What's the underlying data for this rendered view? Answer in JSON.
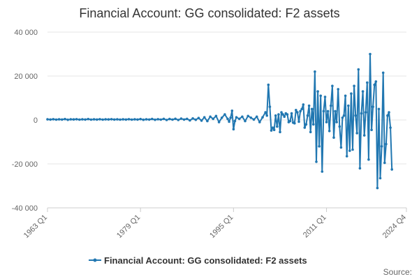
{
  "chart_data": {
    "type": "line",
    "title": "Financial Account: GG consolidated: F2 assets",
    "xlabel": "",
    "ylabel": "",
    "ylim": [
      -40000,
      40000
    ],
    "y_ticks": [
      40000,
      20000,
      0,
      -20000,
      -40000
    ],
    "y_tick_labels": [
      "40 000",
      "20 000",
      "0",
      "-20 000",
      "-40 000"
    ],
    "x_tick_labels": [
      "1963 Q1",
      "1979 Q1",
      "1995 Q1",
      "2011 Q1",
      "2024 Q4"
    ],
    "x_ticks_decimal": [
      1963.0,
      1979.0,
      1995.0,
      2011.0,
      2024.75
    ],
    "grid": true,
    "legend_position": "bottom",
    "series": [
      {
        "name": "Financial Account: GG consolidated: F2 assets",
        "color": "#2177b1",
        "points": [
          [
            1963.0,
            300
          ],
          [
            1963.5,
            200
          ],
          [
            1964.0,
            350
          ],
          [
            1964.5,
            150
          ],
          [
            1965.0,
            300
          ],
          [
            1965.5,
            200
          ],
          [
            1966.0,
            400
          ],
          [
            1966.5,
            100
          ],
          [
            1967.0,
            300
          ],
          [
            1967.5,
            250
          ],
          [
            1968.0,
            350
          ],
          [
            1968.5,
            150
          ],
          [
            1969.0,
            300
          ],
          [
            1969.5,
            200
          ],
          [
            1970.0,
            400
          ],
          [
            1970.5,
            150
          ],
          [
            1971.0,
            300
          ],
          [
            1971.5,
            200
          ],
          [
            1972.0,
            350
          ],
          [
            1972.5,
            150
          ],
          [
            1973.0,
            300
          ],
          [
            1973.5,
            250
          ],
          [
            1974.0,
            350
          ],
          [
            1974.5,
            200
          ],
          [
            1975.0,
            300
          ],
          [
            1975.5,
            150
          ],
          [
            1976.0,
            300
          ],
          [
            1976.5,
            200
          ],
          [
            1977.0,
            350
          ],
          [
            1977.5,
            150
          ],
          [
            1978.0,
            300
          ],
          [
            1978.5,
            200
          ],
          [
            1979.0,
            400
          ],
          [
            1979.5,
            100
          ],
          [
            1980.0,
            300
          ],
          [
            1980.5,
            200
          ],
          [
            1981.0,
            450
          ],
          [
            1981.5,
            100
          ],
          [
            1982.0,
            350
          ],
          [
            1982.5,
            150
          ],
          [
            1983.0,
            500
          ],
          [
            1983.5,
            0
          ],
          [
            1984.0,
            450
          ],
          [
            1984.5,
            150
          ],
          [
            1985.0,
            550
          ],
          [
            1985.5,
            0
          ],
          [
            1986.0,
            600
          ],
          [
            1986.5,
            200
          ],
          [
            1987.0,
            500
          ],
          [
            1987.5,
            -200
          ],
          [
            1988.0,
            700
          ],
          [
            1988.5,
            100
          ],
          [
            1989.0,
            900
          ],
          [
            1989.5,
            -300
          ],
          [
            1990.0,
            1200
          ],
          [
            1990.5,
            -500
          ],
          [
            1991.0,
            1500
          ],
          [
            1991.5,
            500
          ],
          [
            1992.0,
            1800
          ],
          [
            1992.5,
            -1000
          ],
          [
            1993.0,
            1000
          ],
          [
            1993.5,
            2500
          ],
          [
            1994.0,
            500
          ],
          [
            1994.25,
            -800
          ],
          [
            1994.5,
            1000
          ],
          [
            1994.75,
            4200
          ],
          [
            1995.0,
            -4200
          ],
          [
            1995.25,
            -500
          ],
          [
            1995.5,
            1200
          ],
          [
            1996.0,
            500
          ],
          [
            1996.5,
            1500
          ],
          [
            1997.0,
            -500
          ],
          [
            1997.5,
            1800
          ],
          [
            1998.0,
            1000
          ],
          [
            1998.5,
            200
          ],
          [
            1999.0,
            1500
          ],
          [
            1999.5,
            -1000
          ],
          [
            2000.0,
            1200
          ],
          [
            2000.5,
            3500
          ],
          [
            2000.75,
            2000
          ],
          [
            2001.0,
            16000
          ],
          [
            2001.25,
            6000
          ],
          [
            2001.5,
            -4800
          ],
          [
            2001.75,
            -3500
          ],
          [
            2002.0,
            -4500
          ],
          [
            2002.25,
            2000
          ],
          [
            2002.5,
            -3000
          ],
          [
            2002.75,
            2500
          ],
          [
            2003.0,
            -5500
          ],
          [
            2003.25,
            3500
          ],
          [
            2003.5,
            2500
          ],
          [
            2003.75,
            1500
          ],
          [
            2004.0,
            3000
          ],
          [
            2004.25,
            2500
          ],
          [
            2004.5,
            -1000
          ],
          [
            2004.75,
            -500
          ],
          [
            2005.0,
            3000
          ],
          [
            2005.25,
            -1200
          ],
          [
            2005.5,
            -1500
          ],
          [
            2005.75,
            4500
          ],
          [
            2006.0,
            3500
          ],
          [
            2006.25,
            -800
          ],
          [
            2006.5,
            4000
          ],
          [
            2006.75,
            5000
          ],
          [
            2007.0,
            7000
          ],
          [
            2007.25,
            -3500
          ],
          [
            2007.5,
            -2000
          ],
          [
            2007.75,
            2000
          ],
          [
            2008.0,
            6500
          ],
          [
            2008.25,
            -5500
          ],
          [
            2008.5,
            5000
          ],
          [
            2008.75,
            -2000
          ],
          [
            2009.0,
            22000
          ],
          [
            2009.25,
            -19000
          ],
          [
            2009.5,
            13000
          ],
          [
            2009.75,
            -12000
          ],
          [
            2010.0,
            11000
          ],
          [
            2010.25,
            -23500
          ],
          [
            2010.5,
            4000
          ],
          [
            2010.75,
            10500
          ],
          [
            2011.0,
            -1000
          ],
          [
            2011.25,
            4000
          ],
          [
            2011.5,
            -5000
          ],
          [
            2011.75,
            6500
          ],
          [
            2012.0,
            15500
          ],
          [
            2012.25,
            -8000
          ],
          [
            2012.5,
            4000
          ],
          [
            2012.75,
            -1000
          ],
          [
            2013.0,
            14000
          ],
          [
            2013.25,
            -3000
          ],
          [
            2013.5,
            -12500
          ],
          [
            2013.75,
            1000
          ],
          [
            2014.0,
            2000
          ],
          [
            2014.25,
            11000
          ],
          [
            2014.5,
            -16500
          ],
          [
            2014.75,
            6500
          ],
          [
            2015.0,
            -14000
          ],
          [
            2015.25,
            12000
          ],
          [
            2015.5,
            -13500
          ],
          [
            2015.75,
            15500
          ],
          [
            2016.0,
            2000
          ],
          [
            2016.25,
            -6000
          ],
          [
            2016.5,
            23000
          ],
          [
            2016.75,
            -22000
          ],
          [
            2017.0,
            3000
          ],
          [
            2017.25,
            13000
          ],
          [
            2017.5,
            -7000
          ],
          [
            2017.75,
            3500
          ],
          [
            2018.0,
            17000
          ],
          [
            2018.25,
            -18000
          ],
          [
            2018.5,
            30000
          ],
          [
            2018.75,
            -4500
          ],
          [
            2019.0,
            6000
          ],
          [
            2019.25,
            16000
          ],
          [
            2019.5,
            17500
          ],
          [
            2019.75,
            -31000
          ],
          [
            2020.0,
            5000
          ],
          [
            2020.25,
            -26500
          ],
          [
            2020.5,
            -12000
          ],
          [
            2020.75,
            21500
          ],
          [
            2021.0,
            -19500
          ],
          [
            2021.25,
            -11000
          ],
          [
            2021.5,
            2000
          ],
          [
            2021.75,
            3500
          ],
          [
            2022.0,
            -3500
          ],
          [
            2022.25,
            -22500
          ]
        ]
      }
    ]
  },
  "legend": {
    "label": "Financial Account: GG consolidated: F2 assets"
  },
  "credits": {
    "label": "Source:"
  }
}
